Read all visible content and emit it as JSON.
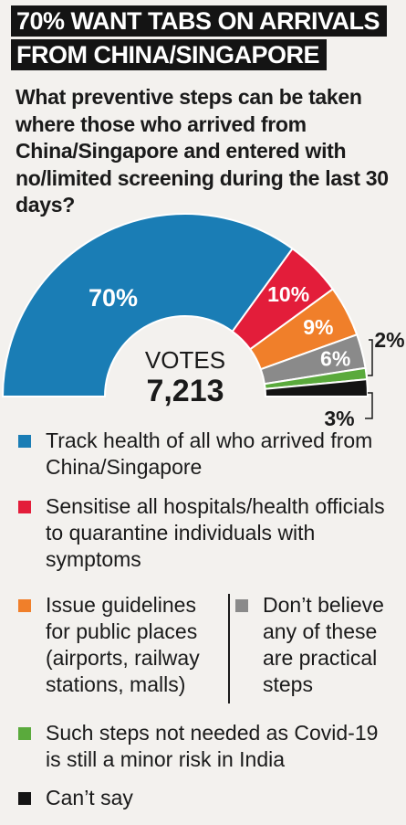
{
  "title": [
    "70% WANT TABS ON ARRIVALS",
    "FROM CHINA/SINGAPORE"
  ],
  "question": "What preventive steps can be taken where those who arrived from China/Singapore and entered with no/limited screening during the last 30 days?",
  "center_label": "VOTES",
  "center_value": "7,213",
  "chart_data": {
    "type": "pie",
    "variant": "half-donut",
    "title": "70% WANT TABS ON ARRIVALS FROM CHINA/SINGAPORE",
    "total_votes": 7213,
    "slices": [
      {
        "label": "Track health of all who arrived from China/Singapore",
        "value": 70,
        "color": "#1a7db5"
      },
      {
        "label": "Sensitise all hospitals/health officials to quarantine individuals with symptoms",
        "value": 10,
        "color": "#e31d3a"
      },
      {
        "label": "Issue guidelines for public places (airports, railway stations, malls)",
        "value": 9,
        "color": "#f07f2a"
      },
      {
        "label": "Don’t believe any of these are practical steps",
        "value": 6,
        "color": "#8a8a8a"
      },
      {
        "label": "Such steps not needed as Covid-19 is still a minor risk in India",
        "value": 2,
        "color": "#5aaa3c"
      },
      {
        "label": "Can’t say",
        "value": 3,
        "color": "#141414"
      }
    ],
    "data_labels": [
      "70%",
      "10%",
      "9%",
      "6%",
      "2%",
      "3%"
    ]
  },
  "legend": [
    {
      "text": "Track health of all who arrived from China/Singapore",
      "color": "#1a7db5"
    },
    {
      "text": "Sensitise all hospitals/health officials to quarantine individuals with symptoms",
      "color": "#e31d3a"
    },
    {
      "text": "Issue guidelines for public places (airports, railway stations, malls)",
      "color": "#f07f2a"
    },
    {
      "text": "Don’t believe any of these are practical steps",
      "color": "#8a8a8a"
    },
    {
      "text": "Such steps not needed as Covid-19 is still a minor risk in India",
      "color": "#5aaa3c"
    },
    {
      "text": "Can’t say",
      "color": "#141414"
    }
  ]
}
